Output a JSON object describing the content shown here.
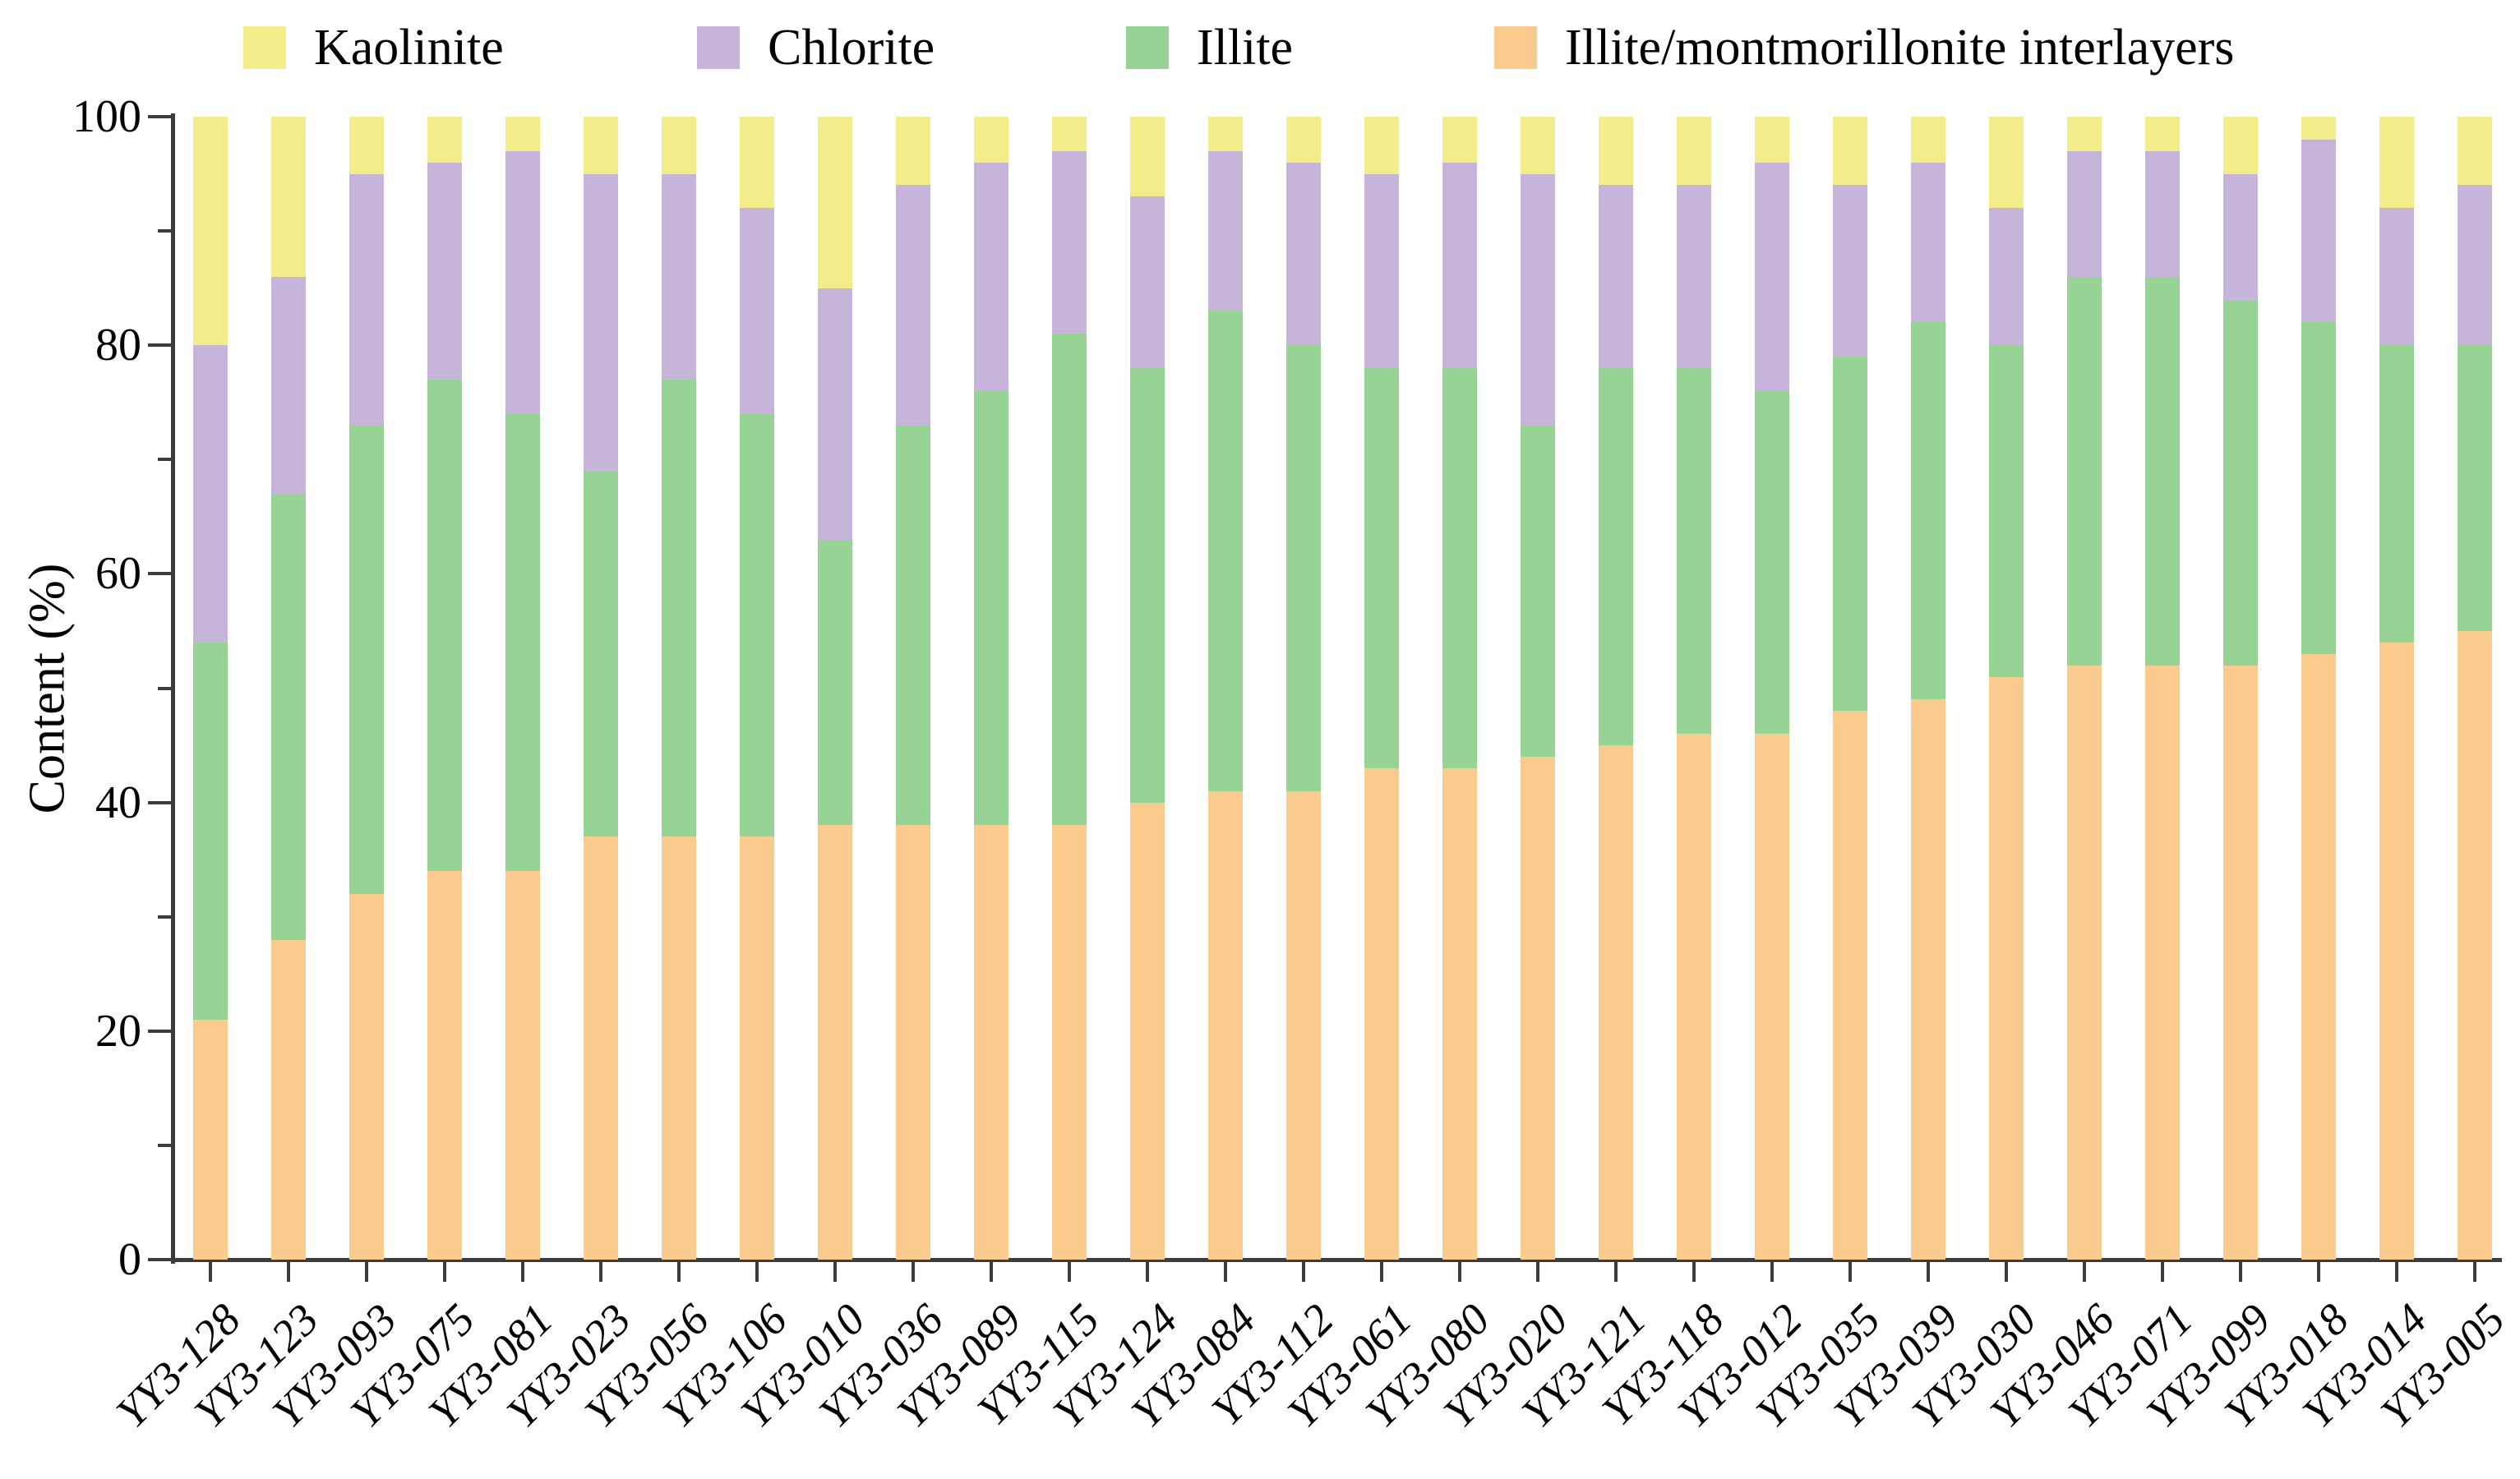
{
  "y_axis": {
    "label": "Content (%)",
    "major_ticks": [
      0,
      20,
      40,
      60,
      80,
      100
    ],
    "minor_ticks": [
      10,
      30,
      50,
      70,
      90
    ],
    "min": 0,
    "max": 100
  },
  "legend": [
    {
      "label": "Kaolinite",
      "color": "#f3ec8b"
    },
    {
      "label": "Chlorite",
      "color": "#c6b4da"
    },
    {
      "label": "Illite",
      "color": "#97d395"
    },
    {
      "label": "Illite/montmorillonite interlayers",
      "color": "#fbca8d"
    }
  ],
  "chart_data": {
    "type": "bar",
    "stacked": true,
    "title": "",
    "xlabel": "",
    "ylabel": "Content (%)",
    "ylim": [
      0,
      100
    ],
    "grid": false,
    "legend_position": "top",
    "categories": [
      "YY3-128",
      "YY3-123",
      "YY3-093",
      "YY3-075",
      "YY3-081",
      "YY3-023",
      "YY3-056",
      "YY3-106",
      "YY3-010",
      "YY3-036",
      "YY3-089",
      "YY3-115",
      "YY3-124",
      "YY3-084",
      "YY3-112",
      "YY3-061",
      "YY3-080",
      "YY3-020",
      "YY3-121",
      "YY3-118",
      "YY3-012",
      "YY3-035",
      "YY3-039",
      "YY3-030",
      "YY3-046",
      "YY3-071",
      "YY3-099",
      "YY3-018",
      "YY3-014",
      "YY3-005"
    ],
    "series": [
      {
        "name": "Illite/montmorillonite interlayers",
        "color": "#fbca8d",
        "values": [
          21,
          28,
          32,
          34,
          34,
          37,
          37,
          37,
          38,
          38,
          38,
          38,
          40,
          41,
          41,
          43,
          43,
          44,
          45,
          46,
          46,
          48,
          49,
          51,
          52,
          52,
          52,
          53,
          54,
          55
        ]
      },
      {
        "name": "Illite",
        "color": "#97d395",
        "values": [
          33,
          39,
          41,
          43,
          40,
          32,
          40,
          37,
          25,
          35,
          38,
          43,
          38,
          42,
          39,
          35,
          35,
          29,
          33,
          32,
          30,
          31,
          33,
          29,
          34,
          34,
          32,
          29,
          26,
          25
        ]
      },
      {
        "name": "Chlorite",
        "color": "#c6b4da",
        "values": [
          26,
          19,
          22,
          19,
          23,
          26,
          18,
          18,
          22,
          21,
          20,
          16,
          15,
          14,
          16,
          17,
          18,
          22,
          16,
          16,
          20,
          15,
          14,
          12,
          11,
          11,
          11,
          16,
          12,
          14
        ]
      },
      {
        "name": "Kaolinite",
        "color": "#f3ec8b",
        "values": [
          20,
          14,
          5,
          4,
          3,
          5,
          5,
          8,
          15,
          6,
          4,
          3,
          7,
          3,
          4,
          5,
          4,
          5,
          6,
          6,
          4,
          6,
          4,
          8,
          3,
          3,
          5,
          2,
          8,
          6
        ]
      }
    ]
  }
}
